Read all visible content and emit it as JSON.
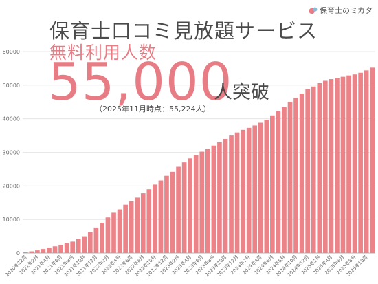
{
  "brand": {
    "name": "保育士のミカタ"
  },
  "headline": {
    "title": "保育士口コミ見放題サービス",
    "subtitle": "無料利用人数",
    "big_number": "55,000",
    "unit": "人突破",
    "note": "（2025年11月時点：55,224人）"
  },
  "colors": {
    "bar": "#ec8388",
    "accent": "#e87c85",
    "text": "#4a4a4a",
    "grid": "#e0e0e0"
  },
  "chart_data": {
    "type": "bar",
    "title": "",
    "xlabel": "",
    "ylabel": "",
    "ylim": [
      0,
      60000
    ],
    "yticks": [
      0,
      10000,
      20000,
      30000,
      40000,
      50000,
      60000
    ],
    "grid": true,
    "tick_labels": [
      "2020年12月",
      "2021年2月",
      "2021年4月",
      "2021年6月",
      "2021年8月",
      "2021年10月",
      "2021年12月",
      "2022年2月",
      "2022年4月",
      "2022年6月",
      "2022年8月",
      "2022年10月",
      "2022年12月",
      "2023年2月",
      "2023年4月",
      "2023年6月",
      "2023年8月",
      "2023年10月",
      "2023年12月",
      "2024年2月",
      "2024年4月",
      "2024年6月",
      "2024年8月",
      "2024年10月",
      "2024年12月",
      "2025年2月",
      "2025年4月",
      "2025年6月",
      "2025年8月",
      "2025年10月"
    ],
    "categories": [
      "2020年12月",
      "2021年1月",
      "2021年2月",
      "2021年3月",
      "2021年4月",
      "2021年5月",
      "2021年6月",
      "2021年7月",
      "2021年8月",
      "2021年9月",
      "2021年10月",
      "2021年11月",
      "2021年12月",
      "2022年1月",
      "2022年2月",
      "2022年3月",
      "2022年4月",
      "2022年5月",
      "2022年6月",
      "2022年7月",
      "2022年8月",
      "2022年9月",
      "2022年10月",
      "2022年11月",
      "2022年12月",
      "2023年1月",
      "2023年2月",
      "2023年3月",
      "2023年4月",
      "2023年5月",
      "2023年6月",
      "2023年7月",
      "2023年8月",
      "2023年9月",
      "2023年10月",
      "2023年11月",
      "2023年12月",
      "2024年1月",
      "2024年2月",
      "2024年3月",
      "2024年4月",
      "2024年5月",
      "2024年6月",
      "2024年7月",
      "2024年8月",
      "2024年9月",
      "2024年10月",
      "2024年11月",
      "2024年12月",
      "2025年1月",
      "2025年2月",
      "2025年3月",
      "2025年4月",
      "2025年5月",
      "2025年6月",
      "2025年7月",
      "2025年8月",
      "2025年9月",
      "2025年10月",
      "2025年11月"
    ],
    "values": [
      200,
      500,
      800,
      1200,
      1600,
      2000,
      2400,
      2900,
      3400,
      4200,
      5000,
      6300,
      7600,
      9000,
      10600,
      12000,
      13000,
      14400,
      15400,
      16500,
      17800,
      19000,
      20400,
      21600,
      23000,
      24200,
      25700,
      27000,
      28200,
      29200,
      30200,
      31000,
      32000,
      33000,
      34000,
      35000,
      35900,
      36700,
      37300,
      38000,
      38800,
      39700,
      41000,
      42200,
      43500,
      45000,
      46200,
      47500,
      48800,
      49600,
      50600,
      51300,
      51800,
      52200,
      52500,
      52900,
      53200,
      53700,
      54400,
      55224
    ]
  }
}
